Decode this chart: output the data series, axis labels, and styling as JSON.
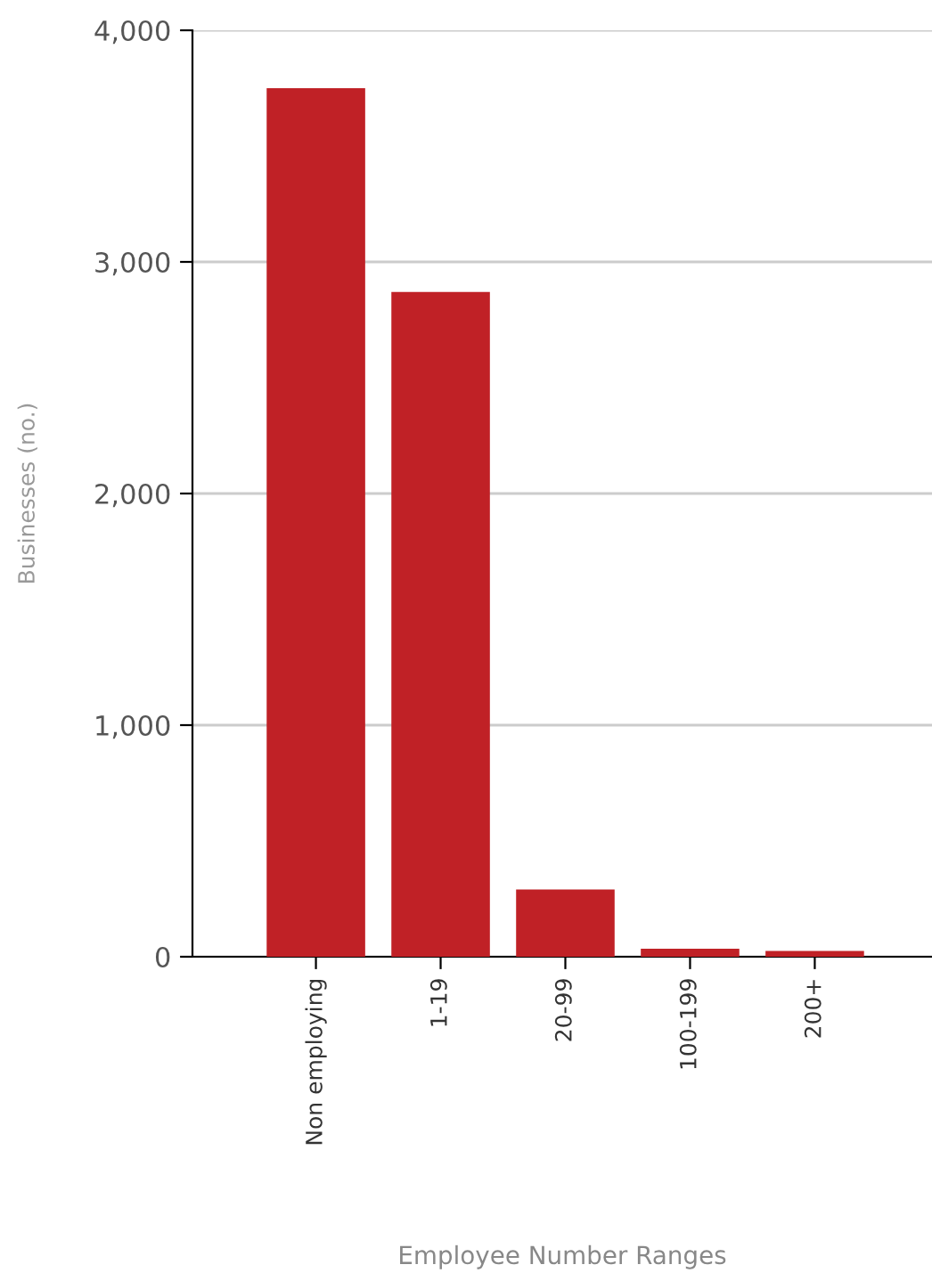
{
  "chart_data": {
    "type": "bar",
    "xlabel": "Employee Number Ranges",
    "ylabel": "Businesses (no.)",
    "categories": [
      "Non employing",
      "1-19",
      "20-99",
      "100-199",
      "200+"
    ],
    "values": [
      3750,
      2870,
      290,
      35,
      25
    ],
    "color": "#c02126",
    "ylim": [
      0,
      4000
    ],
    "yticks": [
      {
        "value": 0,
        "label": "0"
      },
      {
        "value": 1000,
        "label": "1,000"
      },
      {
        "value": 2000,
        "label": "2,000"
      },
      {
        "value": 3000,
        "label": "3,000"
      },
      {
        "value": 4000,
        "label": "4,000"
      }
    ],
    "grid": "y",
    "legend": false
  }
}
